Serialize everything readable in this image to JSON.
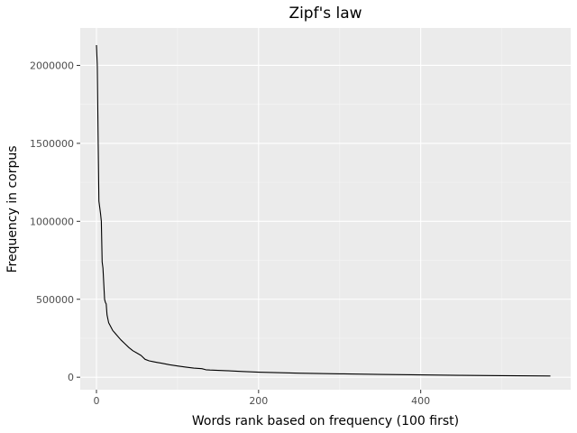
{
  "chart_data": {
    "type": "line",
    "title": "Zipf's law",
    "xlabel": "Words rank based on frequency (100 first)",
    "ylabel": "Frequency in corpus",
    "xlim": [
      -20,
      585
    ],
    "ylim": [
      -80000,
      2240000
    ],
    "x_ticks": [
      {
        "value": 0,
        "label": "0"
      },
      {
        "value": 200,
        "label": "200"
      },
      {
        "value": 400,
        "label": "400"
      }
    ],
    "y_ticks": [
      {
        "value": 0,
        "label": "0"
      },
      {
        "value": 500000,
        "label": "500000"
      },
      {
        "value": 1000000,
        "label": "1000000"
      },
      {
        "value": 1500000,
        "label": "1500000"
      },
      {
        "value": 2000000,
        "label": "2000000"
      }
    ],
    "grid": true,
    "series": [
      {
        "color": "#000000",
        "x": [
          0,
          1,
          2,
          3,
          5,
          6,
          7,
          8,
          10,
          11,
          12,
          13,
          15,
          17,
          20,
          25,
          30,
          35,
          40,
          45,
          50,
          55,
          60,
          65,
          70,
          75,
          80,
          90,
          100,
          110,
          120,
          130,
          135,
          140,
          160,
          180,
          200,
          250,
          300,
          350,
          400,
          450,
          500,
          560
        ],
        "y": [
          2130000,
          2000000,
          1550000,
          1130000,
          1050000,
          1000000,
          740000,
          700000,
          500000,
          480000,
          470000,
          400000,
          350000,
          330000,
          300000,
          270000,
          240000,
          215000,
          190000,
          170000,
          155000,
          140000,
          115000,
          105000,
          100000,
          95000,
          90000,
          80000,
          72000,
          65000,
          58000,
          55000,
          48000,
          46000,
          42000,
          37000,
          32000,
          26000,
          22000,
          18000,
          15000,
          12000,
          10000,
          8000
        ]
      }
    ]
  }
}
